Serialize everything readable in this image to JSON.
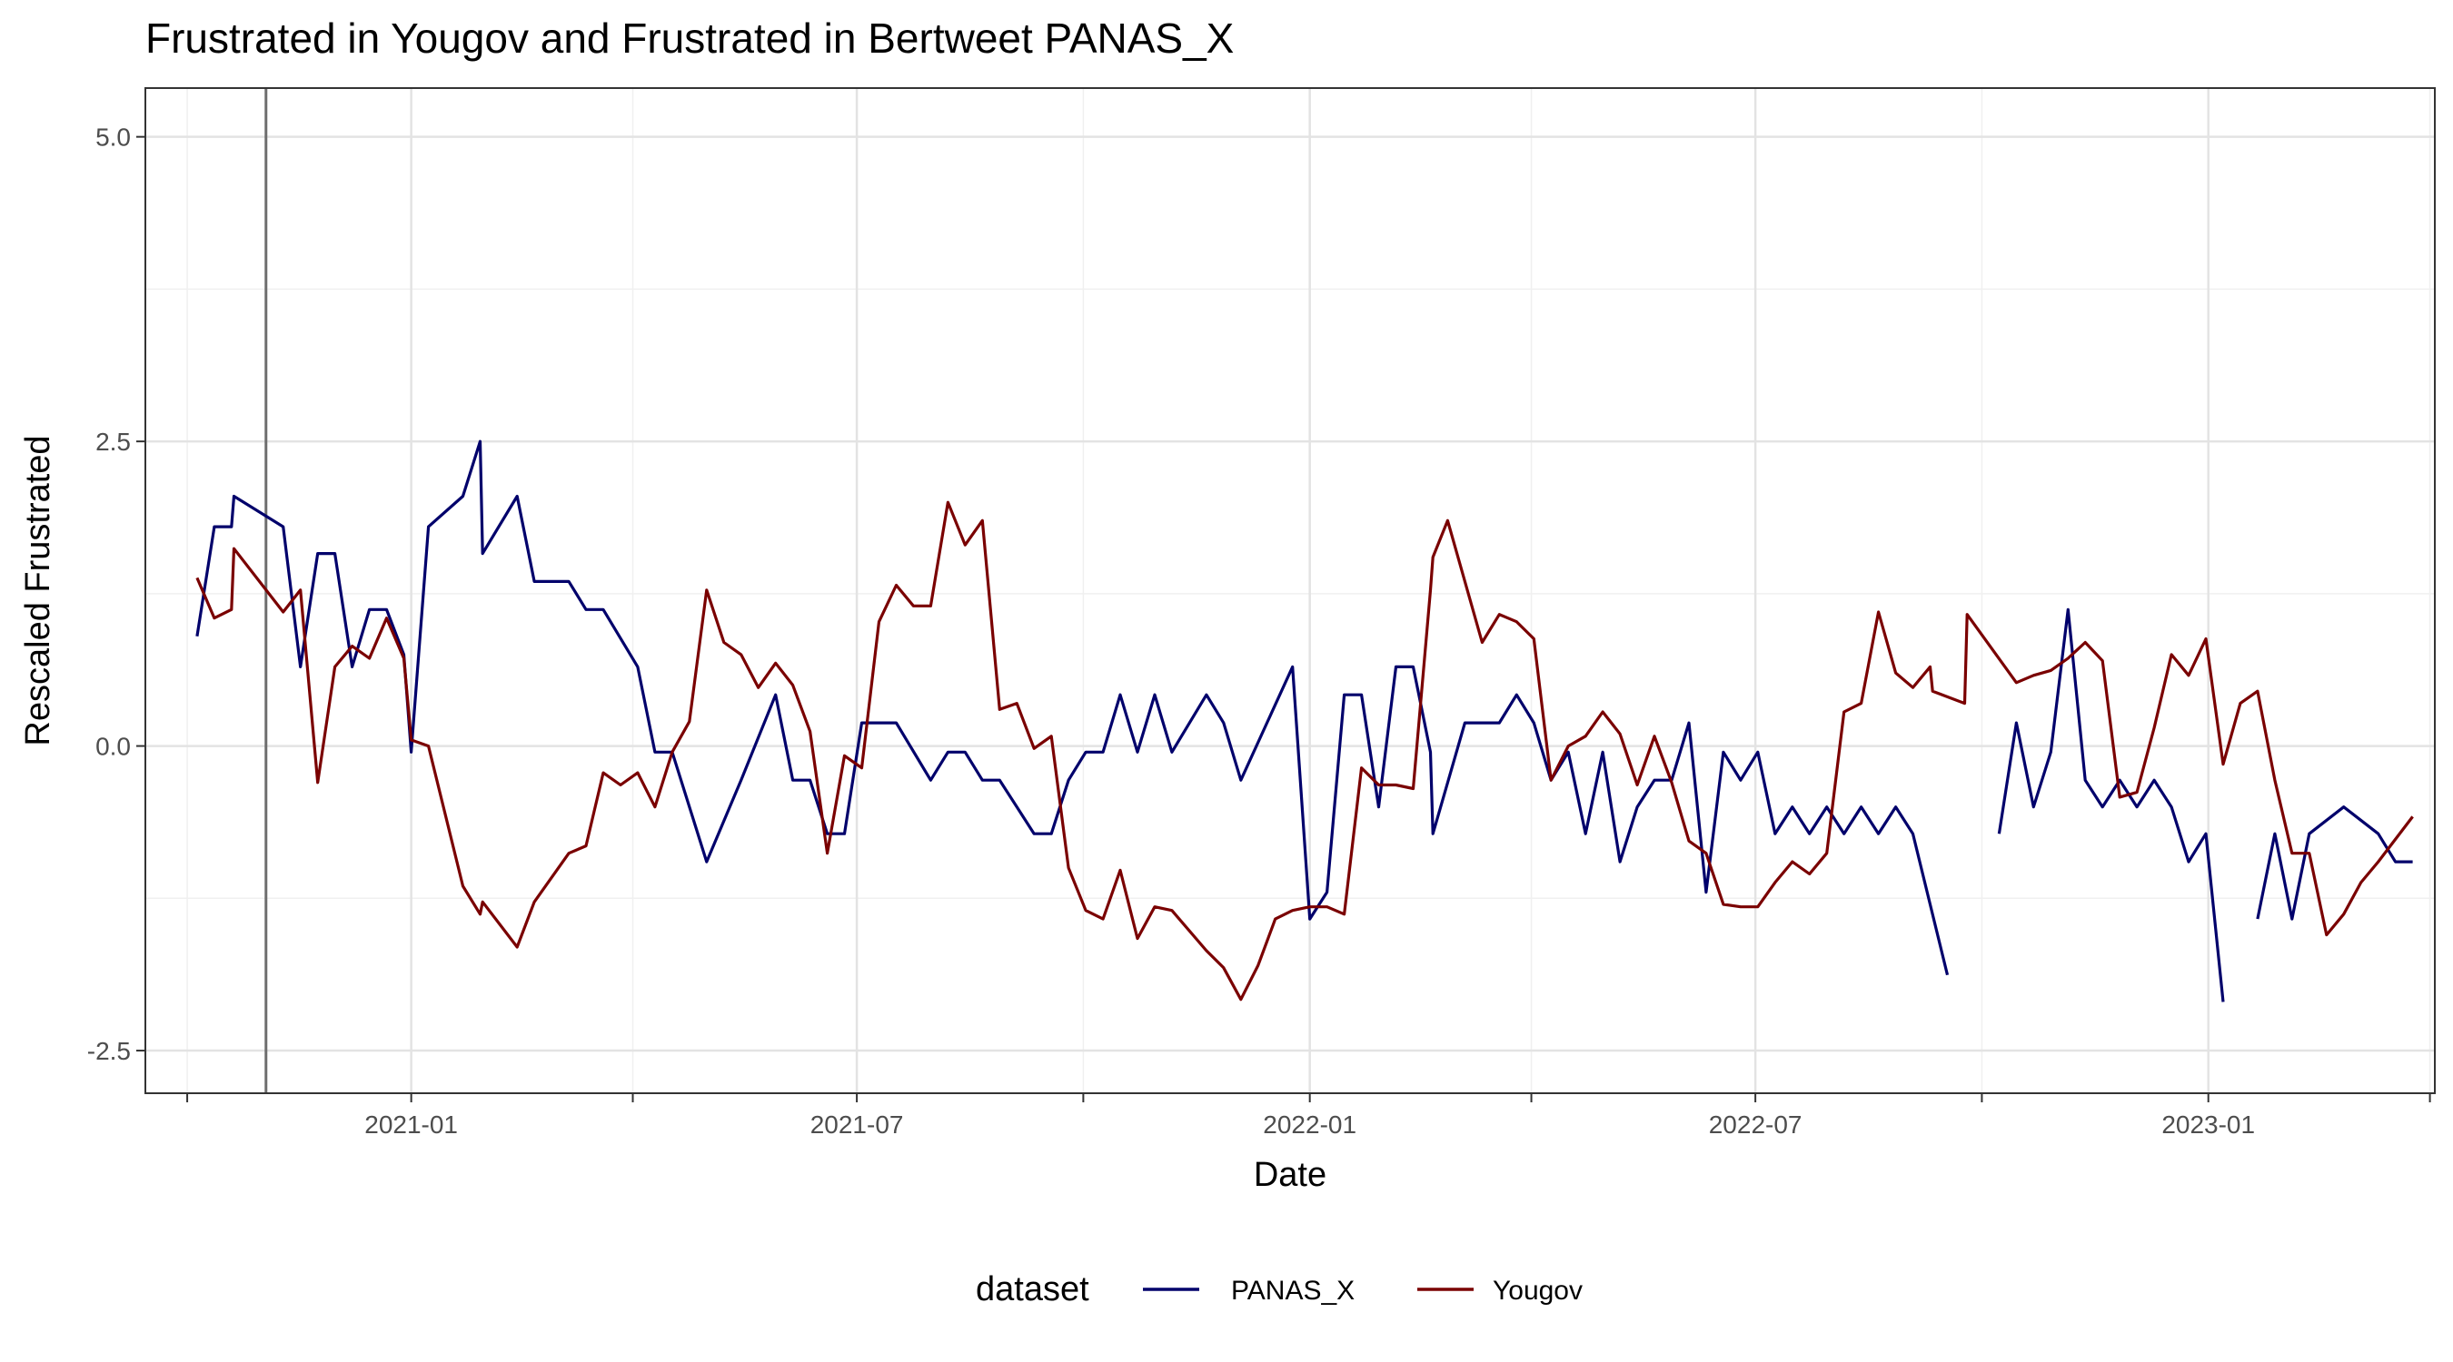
{
  "chart_data": {
    "type": "line",
    "title": "Frustrated  in Yougov and  Frustrated  in Bertweet   PANAS_X",
    "xlabel": "Date",
    "ylabel": "Rescaled  Frustrated",
    "x_ticks": [
      "2021-01",
      "2021-07",
      "2022-01",
      "2022-07",
      "2023-01"
    ],
    "y_ticks": [
      "-2.5",
      "0.0",
      "2.5",
      "5.0"
    ],
    "ylim": [
      -2.85,
      5.4
    ],
    "xlim": [
      "2020-09-15",
      "2023-04-03"
    ],
    "grid": true,
    "vline_date": "2020-11-03",
    "legend": {
      "title": "dataset",
      "position": "bottom",
      "items": [
        {
          "label": "PANAS_X",
          "color": "#00006b"
        },
        {
          "label": "Yougov",
          "color": "#7a0000"
        }
      ]
    },
    "series": [
      {
        "name": "PANAS_X",
        "color": "#00006b",
        "segments": [
          [
            [
              "2020-10-06",
              0.9
            ],
            [
              "2020-10-13",
              1.8
            ],
            [
              "2020-10-20",
              1.8
            ],
            [
              "2020-10-21",
              2.05
            ],
            [
              "2020-11-10",
              1.8
            ],
            [
              "2020-11-17",
              0.65
            ],
            [
              "2020-11-24",
              1.58
            ],
            [
              "2020-12-01",
              1.58
            ],
            [
              "2020-12-08",
              0.65
            ],
            [
              "2020-12-15",
              1.12
            ],
            [
              "2020-12-22",
              1.12
            ],
            [
              "2020-12-29",
              0.75
            ],
            [
              "2021-01-01",
              -0.05
            ],
            [
              "2021-01-08",
              1.8
            ],
            [
              "2021-01-22",
              2.05
            ],
            [
              "2021-01-29",
              2.5
            ],
            [
              "2021-01-30",
              1.58
            ],
            [
              "2021-02-13",
              2.05
            ],
            [
              "2021-02-20",
              1.35
            ],
            [
              "2021-03-06",
              1.35
            ],
            [
              "2021-03-13",
              1.12
            ],
            [
              "2021-03-20",
              1.12
            ],
            [
              "2021-04-03",
              0.65
            ],
            [
              "2021-04-10",
              -0.05
            ],
            [
              "2021-04-17",
              -0.05
            ],
            [
              "2021-05-01",
              -0.95
            ],
            [
              "2021-05-15",
              -0.28
            ],
            [
              "2021-05-29",
              0.42
            ],
            [
              "2021-06-05",
              -0.28
            ],
            [
              "2021-06-12",
              -0.28
            ],
            [
              "2021-06-19",
              -0.72
            ],
            [
              "2021-06-26",
              -0.72
            ],
            [
              "2021-07-03",
              0.19
            ],
            [
              "2021-07-17",
              0.19
            ],
            [
              "2021-07-31",
              -0.28
            ],
            [
              "2021-08-07",
              -0.05
            ],
            [
              "2021-08-14",
              -0.05
            ],
            [
              "2021-08-21",
              -0.28
            ],
            [
              "2021-08-28",
              -0.28
            ],
            [
              "2021-09-11",
              -0.72
            ],
            [
              "2021-09-18",
              -0.72
            ],
            [
              "2021-09-25",
              -0.28
            ],
            [
              "2021-10-02",
              -0.05
            ],
            [
              "2021-10-09",
              -0.05
            ],
            [
              "2021-10-16",
              0.42
            ],
            [
              "2021-10-23",
              -0.05
            ],
            [
              "2021-10-30",
              0.42
            ],
            [
              "2021-11-06",
              -0.05
            ],
            [
              "2021-11-20",
              0.42
            ],
            [
              "2021-11-27",
              0.19
            ],
            [
              "2021-12-04",
              -0.28
            ],
            [
              "2021-12-25",
              0.65
            ],
            [
              "2022-01-01",
              -1.42
            ],
            [
              "2022-01-08",
              -1.2
            ],
            [
              "2022-01-15",
              0.42
            ],
            [
              "2022-01-22",
              0.42
            ],
            [
              "2022-01-29",
              -0.5
            ],
            [
              "2022-02-05",
              0.65
            ],
            [
              "2022-02-12",
              0.65
            ],
            [
              "2022-02-19",
              -0.05
            ],
            [
              "2022-02-20",
              -0.72
            ],
            [
              "2022-03-05",
              0.19
            ],
            [
              "2022-03-19",
              0.19
            ],
            [
              "2022-03-26",
              0.42
            ],
            [
              "2022-04-02",
              0.19
            ],
            [
              "2022-04-09",
              -0.28
            ],
            [
              "2022-04-16",
              -0.05
            ],
            [
              "2022-04-23",
              -0.72
            ],
            [
              "2022-04-30",
              -0.05
            ],
            [
              "2022-05-07",
              -0.95
            ],
            [
              "2022-05-14",
              -0.5
            ],
            [
              "2022-05-21",
              -0.28
            ],
            [
              "2022-05-28",
              -0.28
            ],
            [
              "2022-06-04",
              0.19
            ],
            [
              "2022-06-11",
              -1.2
            ],
            [
              "2022-06-18",
              -0.05
            ],
            [
              "2022-06-25",
              -0.28
            ],
            [
              "2022-07-02",
              -0.05
            ],
            [
              "2022-07-09",
              -0.72
            ],
            [
              "2022-07-16",
              -0.5
            ],
            [
              "2022-07-23",
              -0.72
            ],
            [
              "2022-07-30",
              -0.5
            ],
            [
              "2022-08-06",
              -0.72
            ],
            [
              "2022-08-13",
              -0.5
            ],
            [
              "2022-08-20",
              -0.72
            ],
            [
              "2022-08-27",
              -0.5
            ],
            [
              "2022-09-03",
              -0.72
            ],
            [
              "2022-09-17",
              -1.88
            ]
          ],
          [
            [
              "2022-10-08",
              -0.72
            ],
            [
              "2022-10-15",
              0.19
            ],
            [
              "2022-10-22",
              -0.5
            ],
            [
              "2022-10-29",
              -0.05
            ],
            [
              "2022-11-05",
              1.12
            ],
            [
              "2022-11-12",
              -0.28
            ],
            [
              "2022-11-19",
              -0.5
            ],
            [
              "2022-11-26",
              -0.28
            ],
            [
              "2022-12-03",
              -0.5
            ],
            [
              "2022-12-10",
              -0.28
            ],
            [
              "2022-12-17",
              -0.5
            ],
            [
              "2022-12-24",
              -0.95
            ],
            [
              "2022-12-31",
              -0.72
            ],
            [
              "2023-01-07",
              -2.1
            ]
          ],
          [
            [
              "2023-01-21",
              -1.42
            ],
            [
              "2023-01-28",
              -0.72
            ],
            [
              "2023-02-04",
              -1.42
            ],
            [
              "2023-02-11",
              -0.72
            ],
            [
              "2023-02-25",
              -0.5
            ],
            [
              "2023-03-11",
              -0.72
            ],
            [
              "2023-03-18",
              -0.95
            ],
            [
              "2023-03-25",
              -0.95
            ]
          ]
        ]
      },
      {
        "name": "Yougov",
        "color": "#7a0000",
        "segments": [
          [
            [
              "2020-10-06",
              1.38
            ],
            [
              "2020-10-13",
              1.05
            ],
            [
              "2020-10-20",
              1.12
            ],
            [
              "2020-10-21",
              1.62
            ],
            [
              "2020-11-10",
              1.1
            ],
            [
              "2020-11-17",
              1.28
            ],
            [
              "2020-11-24",
              -0.3
            ],
            [
              "2020-12-01",
              0.65
            ],
            [
              "2020-12-08",
              0.82
            ],
            [
              "2020-12-15",
              0.72
            ],
            [
              "2020-12-22",
              1.05
            ],
            [
              "2020-12-29",
              0.72
            ],
            [
              "2021-01-01",
              0.05
            ],
            [
              "2021-01-08",
              0.0
            ],
            [
              "2021-01-22",
              -1.15
            ],
            [
              "2021-01-29",
              -1.38
            ],
            [
              "2021-01-30",
              -1.28
            ],
            [
              "2021-02-13",
              -1.65
            ],
            [
              "2021-02-20",
              -1.28
            ],
            [
              "2021-03-06",
              -0.88
            ],
            [
              "2021-03-13",
              -0.82
            ],
            [
              "2021-03-20",
              -0.22
            ],
            [
              "2021-03-27",
              -0.32
            ],
            [
              "2021-04-03",
              -0.22
            ],
            [
              "2021-04-10",
              -0.5
            ],
            [
              "2021-04-17",
              -0.05
            ],
            [
              "2021-04-24",
              0.2
            ],
            [
              "2021-05-01",
              1.28
            ],
            [
              "2021-05-08",
              0.85
            ],
            [
              "2021-05-15",
              0.75
            ],
            [
              "2021-05-22",
              0.48
            ],
            [
              "2021-05-29",
              0.68
            ],
            [
              "2021-06-05",
              0.5
            ],
            [
              "2021-06-12",
              0.12
            ],
            [
              "2021-06-19",
              -0.88
            ],
            [
              "2021-06-26",
              -0.08
            ],
            [
              "2021-07-03",
              -0.18
            ],
            [
              "2021-07-10",
              1.02
            ],
            [
              "2021-07-17",
              1.32
            ],
            [
              "2021-07-24",
              1.15
            ],
            [
              "2021-07-31",
              1.15
            ],
            [
              "2021-08-07",
              2.0
            ],
            [
              "2021-08-14",
              1.65
            ],
            [
              "2021-08-21",
              1.85
            ],
            [
              "2021-08-28",
              0.3
            ],
            [
              "2021-09-04",
              0.35
            ],
            [
              "2021-09-11",
              -0.02
            ],
            [
              "2021-09-18",
              0.08
            ],
            [
              "2021-09-25",
              -1.0
            ],
            [
              "2021-10-02",
              -1.35
            ],
            [
              "2021-10-09",
              -1.42
            ],
            [
              "2021-10-16",
              -1.02
            ],
            [
              "2021-10-23",
              -1.58
            ],
            [
              "2021-10-30",
              -1.32
            ],
            [
              "2021-11-06",
              -1.35
            ],
            [
              "2021-11-20",
              -1.68
            ],
            [
              "2021-11-27",
              -1.82
            ],
            [
              "2021-12-04",
              -2.08
            ],
            [
              "2021-12-11",
              -1.8
            ],
            [
              "2021-12-18",
              -1.42
            ],
            [
              "2021-12-25",
              -1.35
            ],
            [
              "2022-01-01",
              -1.32
            ],
            [
              "2022-01-08",
              -1.32
            ],
            [
              "2022-01-15",
              -1.38
            ],
            [
              "2022-01-22",
              -0.18
            ],
            [
              "2022-01-29",
              -0.32
            ],
            [
              "2022-02-05",
              -0.32
            ],
            [
              "2022-02-12",
              -0.35
            ],
            [
              "2022-02-19",
              1.28
            ],
            [
              "2022-02-20",
              1.55
            ],
            [
              "2022-02-26",
              1.85
            ],
            [
              "2022-03-05",
              1.35
            ],
            [
              "2022-03-12",
              0.85
            ],
            [
              "2022-03-19",
              1.08
            ],
            [
              "2022-03-26",
              1.02
            ],
            [
              "2022-04-02",
              0.88
            ],
            [
              "2022-04-09",
              -0.28
            ],
            [
              "2022-04-16",
              0.0
            ],
            [
              "2022-04-23",
              0.08
            ],
            [
              "2022-04-30",
              0.28
            ],
            [
              "2022-05-07",
              0.1
            ],
            [
              "2022-05-14",
              -0.32
            ],
            [
              "2022-05-21",
              0.08
            ],
            [
              "2022-05-28",
              -0.3
            ],
            [
              "2022-06-04",
              -0.78
            ],
            [
              "2022-06-11",
              -0.88
            ],
            [
              "2022-06-18",
              -1.3
            ],
            [
              "2022-06-25",
              -1.32
            ],
            [
              "2022-07-02",
              -1.32
            ],
            [
              "2022-07-09",
              -1.12
            ],
            [
              "2022-07-16",
              -0.95
            ],
            [
              "2022-07-23",
              -1.05
            ],
            [
              "2022-07-30",
              -0.88
            ],
            [
              "2022-08-06",
              0.28
            ],
            [
              "2022-08-13",
              0.35
            ],
            [
              "2022-08-20",
              1.1
            ],
            [
              "2022-08-27",
              0.6
            ],
            [
              "2022-09-03",
              0.48
            ],
            [
              "2022-09-10",
              0.65
            ],
            [
              "2022-09-11",
              0.45
            ],
            [
              "2022-09-24",
              0.35
            ],
            [
              "2022-09-25",
              1.08
            ],
            [
              "2022-10-15",
              0.52
            ],
            [
              "2022-10-22",
              0.58
            ],
            [
              "2022-10-29",
              0.62
            ],
            [
              "2022-11-05",
              0.72
            ],
            [
              "2022-11-12",
              0.85
            ],
            [
              "2022-11-19",
              0.7
            ],
            [
              "2022-11-26",
              -0.42
            ],
            [
              "2022-12-03",
              -0.38
            ],
            [
              "2022-12-10",
              0.15
            ],
            [
              "2022-12-17",
              0.75
            ],
            [
              "2022-12-24",
              0.58
            ],
            [
              "2022-12-31",
              0.88
            ],
            [
              "2023-01-07",
              -0.15
            ],
            [
              "2023-01-14",
              0.35
            ],
            [
              "2023-01-21",
              0.45
            ],
            [
              "2023-01-28",
              -0.28
            ],
            [
              "2023-02-04",
              -0.88
            ],
            [
              "2023-02-11",
              -0.88
            ],
            [
              "2023-02-18",
              -1.55
            ],
            [
              "2023-02-25",
              -1.38
            ],
            [
              "2023-03-04",
              -1.12
            ],
            [
              "2023-03-11",
              -0.95
            ],
            [
              "2023-03-25",
              -0.58
            ]
          ]
        ]
      }
    ]
  }
}
